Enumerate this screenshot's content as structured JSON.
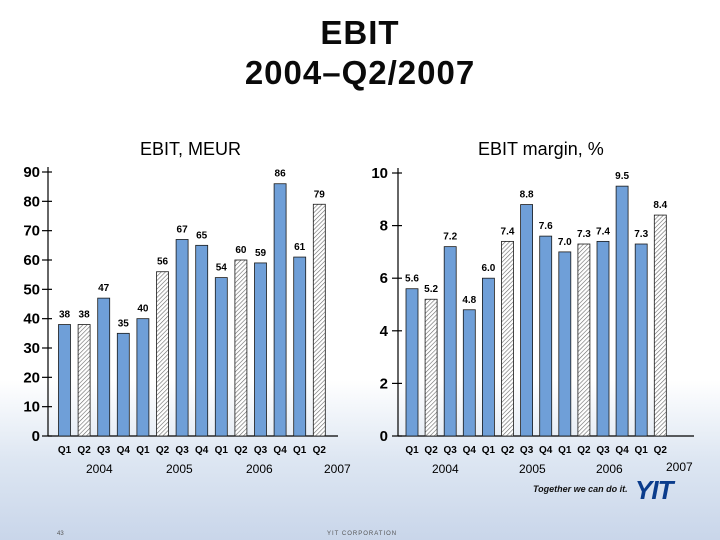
{
  "title_line1": "EBIT",
  "title_line2": "2004–Q2/2007",
  "footer": {
    "page_number": "43",
    "corporation": "YIT CORPORATION",
    "tagline": "Together we can do it.",
    "logo_text": "YIT"
  },
  "colors": {
    "bar_fill": "#6f9fd8",
    "bar_stroke": "#1a1a1a",
    "hatch_stroke": "#6a6a6a",
    "logo": "#0a3c8c"
  },
  "chart_data": [
    {
      "type": "bar",
      "title": "EBIT, MEUR",
      "categories": [
        "Q1",
        "Q2",
        "Q3",
        "Q4",
        "Q1",
        "Q2",
        "Q3",
        "Q4",
        "Q1",
        "Q2",
        "Q3",
        "Q4",
        "Q1",
        "Q2"
      ],
      "year_groups": [
        "2004",
        "2005",
        "2006",
        "2007"
      ],
      "values": [
        38,
        38,
        47,
        35,
        40,
        56,
        67,
        65,
        54,
        60,
        59,
        86,
        61,
        79
      ],
      "data_labels": [
        "38",
        "38",
        "47",
        "35",
        "40",
        "56",
        "67",
        "65",
        "54",
        "60",
        "59",
        "86",
        "61",
        "79"
      ],
      "hatched": [
        false,
        true,
        false,
        false,
        false,
        true,
        false,
        false,
        false,
        true,
        false,
        false,
        false,
        true
      ],
      "yticks": [
        0,
        10,
        20,
        30,
        40,
        50,
        60,
        70,
        80,
        90
      ],
      "ylim": [
        0,
        90
      ],
      "xlabel": "",
      "ylabel": ""
    },
    {
      "type": "bar",
      "title": "EBIT margin, %",
      "categories": [
        "Q1",
        "Q2",
        "Q3",
        "Q4",
        "Q1",
        "Q2",
        "Q3",
        "Q4",
        "Q1",
        "Q2",
        "Q3",
        "Q4",
        "Q1",
        "Q2"
      ],
      "year_groups": [
        "2004",
        "2005",
        "2006",
        "2007"
      ],
      "values": [
        5.6,
        5.2,
        7.2,
        4.8,
        6.0,
        7.4,
        8.8,
        7.6,
        7.0,
        7.3,
        7.4,
        9.5,
        7.3,
        8.4
      ],
      "data_labels": [
        "5.6",
        "5.2",
        "7.2",
        "4.8",
        "6.0",
        "7.4",
        "8.8",
        "7.6",
        "7.0",
        "7.3",
        "7.4",
        "9.5",
        "7.3",
        "8.4"
      ],
      "hatched": [
        false,
        true,
        false,
        false,
        false,
        true,
        false,
        false,
        false,
        true,
        false,
        false,
        false,
        true
      ],
      "yticks": [
        0,
        2,
        4,
        6,
        8,
        10
      ],
      "ylim": [
        0,
        10
      ],
      "xlabel": "",
      "ylabel": ""
    }
  ]
}
